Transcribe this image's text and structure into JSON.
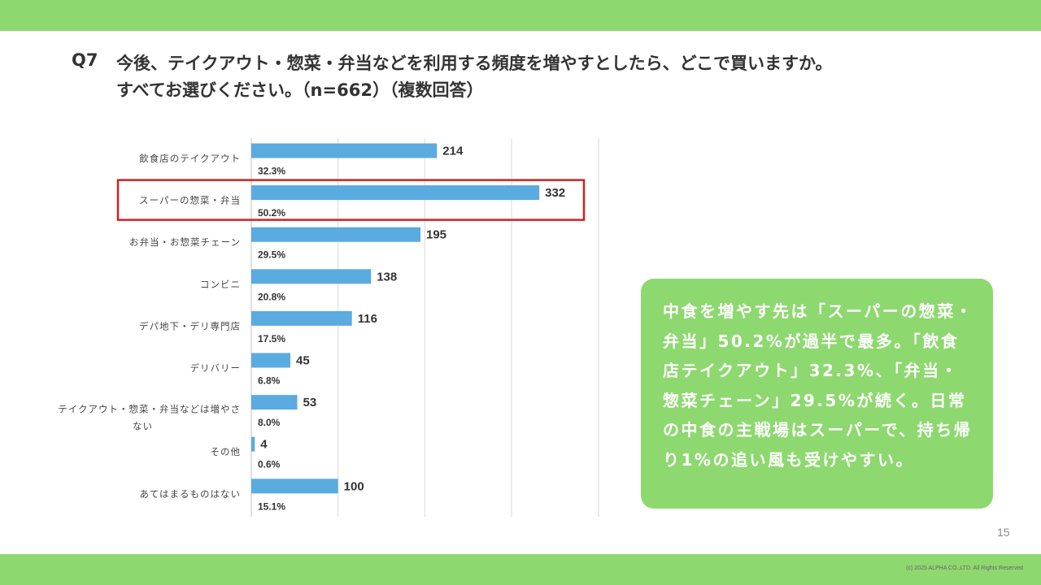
{
  "slide": {
    "question_number": "Q7",
    "question_line1": "今後、テイクアウト・惣菜・弁当などを利用する頻度を増やすとしたら、どこで買いますか。",
    "question_line2": "すべてお選びください。（n=662）（複数回答）",
    "callout_text": "中食を増やす先は「スーパーの惣菜・弁当」50.2%が過半で最多。「飲食店テイクアウト」32.3%、「弁当・惣菜チェーン」29.5%が続く。日常の中食の主戦場はスーパーで、持ち帰り1%の追い風も受けやすい。",
    "page_number": "15",
    "copyright": "(c) 2025 ALPHA CO.,LTD. All Rights Reserved"
  },
  "colors": {
    "band": "#8ed870",
    "bar": "#5aabe0",
    "highlight_border": "#cc2222",
    "grid": "#d9d9d9",
    "text": "#333333"
  },
  "chart_data": {
    "type": "bar",
    "orientation": "horizontal",
    "categories": [
      "飲食店のテイクアウト",
      "スーパーの惣菜・弁当",
      "お弁当・お惣菜チェーン",
      "コンビニ",
      "デパ地下・デリ専門店",
      "デリバリー",
      "テイクアウト・惣菜・弁当などは増やさない",
      "その他",
      "あてはまるものはない"
    ],
    "values": [
      214,
      332,
      195,
      138,
      116,
      45,
      53,
      4,
      100
    ],
    "percent_labels": [
      "32.3%",
      "50.2%",
      "29.5%",
      "20.8%",
      "17.5%",
      "6.8%",
      "8.0%",
      "0.6%",
      "15.1%"
    ],
    "xlim": [
      0,
      400
    ],
    "grid": true,
    "highlighted_category_index": 1
  }
}
